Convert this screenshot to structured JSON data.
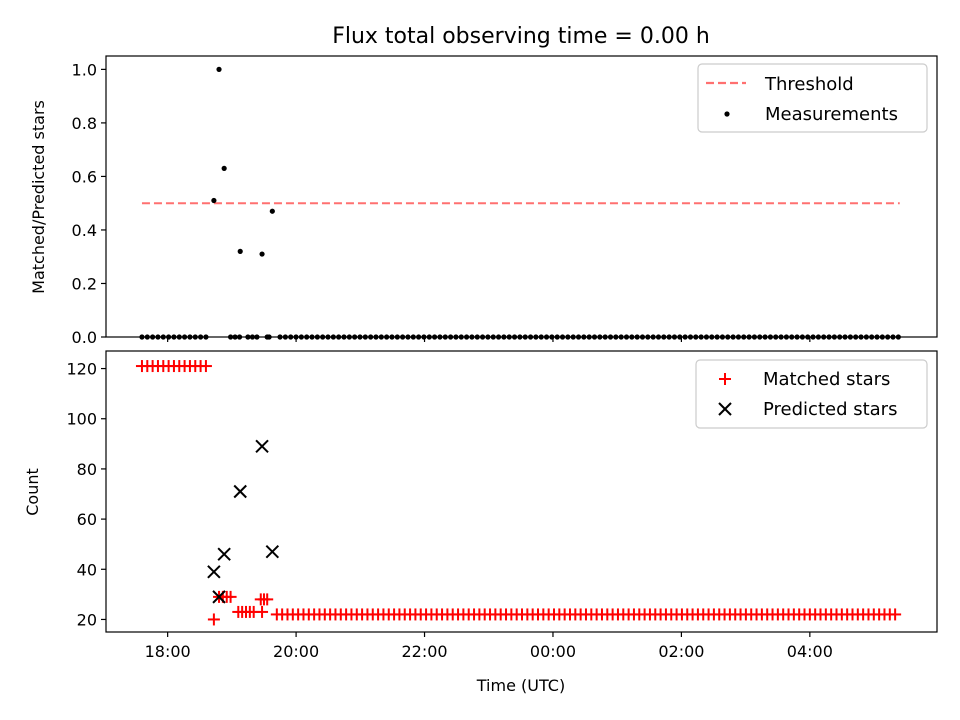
{
  "chart_data": {
    "type": "scatter",
    "title": "Flux total observing time = 0.00 h",
    "xlabel": "Time (UTC)",
    "x_ticks": [
      {
        "value": 18,
        "label": "18:00"
      },
      {
        "value": 20,
        "label": "20:00"
      },
      {
        "value": 22,
        "label": "22:00"
      },
      {
        "value": 24,
        "label": "00:00"
      },
      {
        "value": 26,
        "label": "02:00"
      },
      {
        "value": 28,
        "label": "04:00"
      }
    ],
    "xlim": [
      17.04,
      29.98
    ],
    "panels": [
      {
        "id": "ratio",
        "ylabel": "Matched/Predicted stars",
        "ylim": [
          0,
          1.05
        ],
        "y_ticks": [
          {
            "value": 0.0,
            "label": "0.0"
          },
          {
            "value": 0.2,
            "label": "0.2"
          },
          {
            "value": 0.4,
            "label": "0.4"
          },
          {
            "value": 0.6,
            "label": "0.6"
          },
          {
            "value": 0.8,
            "label": "0.8"
          },
          {
            "value": 1.0,
            "label": "1.0"
          }
        ],
        "threshold": {
          "name": "Threshold",
          "value": 0.5,
          "x_range": [
            17.6,
            29.4
          ],
          "color": "#ff7070"
        },
        "measurements": {
          "name": "Measurements",
          "color": "#000000",
          "zero_segments": [
            [
              17.6,
              18.65,
              0.083
            ],
            [
              18.98,
              19.12,
              0.07
            ],
            [
              19.25,
              19.42,
              0.07
            ],
            [
              19.55,
              19.58,
              0.03
            ],
            [
              19.75,
              29.4,
              0.083
            ]
          ],
          "points": [
            [
              18.72,
              0.51
            ],
            [
              18.8,
              1.0
            ],
            [
              18.88,
              0.63
            ],
            [
              19.13,
              0.32
            ],
            [
              19.47,
              0.31
            ],
            [
              19.63,
              0.47
            ]
          ]
        },
        "legend": [
          "Threshold",
          "Measurements"
        ]
      },
      {
        "id": "counts",
        "ylabel": "Count",
        "ylim": [
          15,
          127
        ],
        "y_ticks": [
          {
            "value": 20,
            "label": "20"
          },
          {
            "value": 40,
            "label": "40"
          },
          {
            "value": 60,
            "label": "60"
          },
          {
            "value": 80,
            "label": "80"
          },
          {
            "value": 100,
            "label": "100"
          },
          {
            "value": 120,
            "label": "120"
          }
        ],
        "series": [
          {
            "name": "Matched stars",
            "marker": "plus",
            "color": "#ff0000",
            "segments": [
              [
                17.6,
                18.65,
                0.083,
                121
              ],
              [
                18.8,
                18.98,
                0.06,
                29
              ],
              [
                19.1,
                19.35,
                0.06,
                23
              ],
              [
                19.45,
                19.55,
                0.05,
                28
              ],
              [
                19.7,
                29.4,
                0.083,
                22
              ]
            ],
            "points": [
              [
                18.72,
                20
              ],
              [
                19.47,
                23
              ]
            ]
          },
          {
            "name": "Predicted stars",
            "marker": "x",
            "color": "#000000",
            "segments": [],
            "points": [
              [
                18.72,
                39
              ],
              [
                18.8,
                29
              ],
              [
                18.88,
                46
              ],
              [
                19.13,
                71
              ],
              [
                19.47,
                89
              ],
              [
                19.63,
                47
              ]
            ]
          }
        ],
        "legend": [
          "Matched stars",
          "Predicted stars"
        ]
      }
    ]
  }
}
